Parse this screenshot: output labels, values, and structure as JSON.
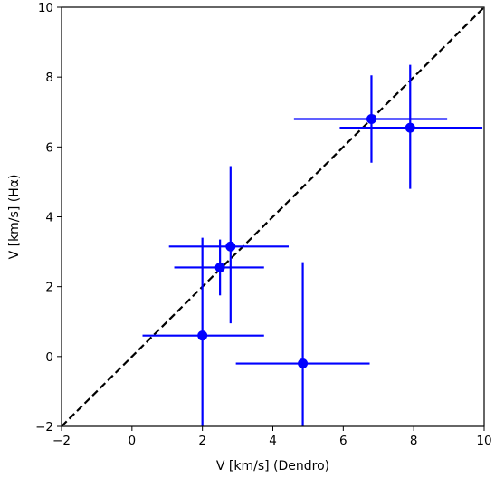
{
  "chart_data": {
    "type": "scatter",
    "title": "",
    "xlabel": "V [km/s] (Dendro)",
    "ylabel": "V [km/s] (Hα)",
    "xlim": [
      -2,
      10
    ],
    "ylim": [
      -2,
      10
    ],
    "xticks": [
      -2,
      0,
      2,
      4,
      6,
      8,
      10
    ],
    "yticks": [
      -2,
      0,
      2,
      4,
      6,
      8,
      10
    ],
    "grid": false,
    "legend": "none",
    "reference_line": {
      "style": "dashed",
      "color": "#000000",
      "x": [
        -2,
        10
      ],
      "y": [
        -2,
        10
      ]
    },
    "series": [
      {
        "color": "#0000ff",
        "points": [
          {
            "x": 6.8,
            "y": 6.8,
            "x_lo": 4.6,
            "x_hi": 8.95,
            "y_lo": 5.55,
            "y_hi": 8.05
          },
          {
            "x": 7.9,
            "y": 6.55,
            "x_lo": 5.9,
            "x_hi": 9.95,
            "y_lo": 4.8,
            "y_hi": 8.35
          },
          {
            "x": 2.8,
            "y": 3.15,
            "x_lo": 1.05,
            "x_hi": 4.45,
            "y_lo": 0.95,
            "y_hi": 5.45
          },
          {
            "x": 2.5,
            "y": 2.55,
            "x_lo": 1.2,
            "x_hi": 3.75,
            "y_lo": 1.75,
            "y_hi": 3.35
          },
          {
            "x": 2.0,
            "y": 0.6,
            "x_lo": 0.3,
            "x_hi": 3.75,
            "y_lo": -2.0,
            "y_hi": 3.4
          },
          {
            "x": 4.85,
            "y": -0.2,
            "x_lo": 2.95,
            "x_hi": 6.75,
            "y_lo": -2.0,
            "y_hi": 2.7
          }
        ]
      }
    ]
  }
}
